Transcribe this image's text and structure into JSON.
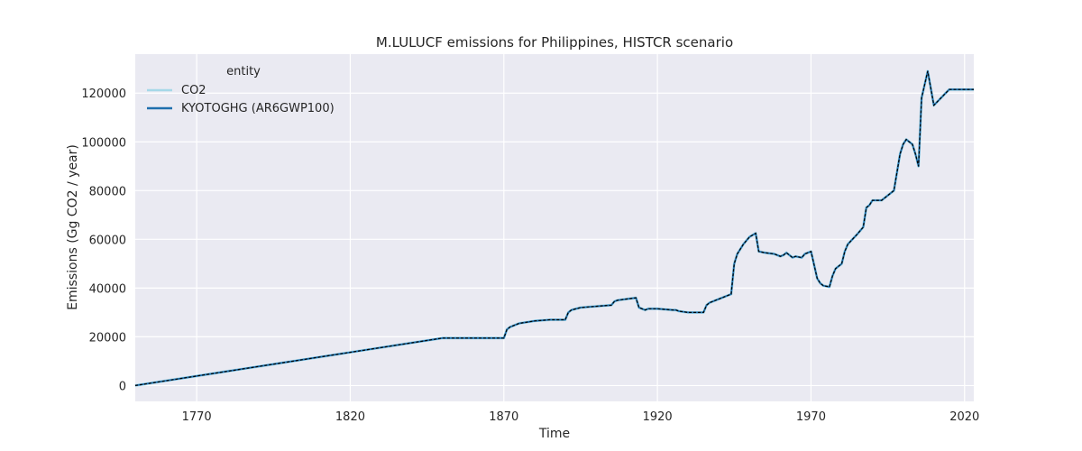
{
  "chart_data": {
    "type": "line",
    "title": "M.LULUCF emissions for Philippines, HISTCR scenario",
    "xlabel": "Time",
    "ylabel": "Emissions (Gg CO2 / year)",
    "xlim": [
      1750,
      2023
    ],
    "ylim": [
      -6500,
      136000
    ],
    "xticks": [
      1770,
      1820,
      1870,
      1920,
      1970,
      2020
    ],
    "yticks": [
      0,
      20000,
      40000,
      60000,
      80000,
      100000,
      120000
    ],
    "grid": true,
    "legend": {
      "title": "entity",
      "position": "top-left"
    },
    "x": [
      1750,
      1850,
      1870,
      1871,
      1872,
      1875,
      1880,
      1885,
      1890,
      1891,
      1892,
      1895,
      1900,
      1905,
      1906,
      1907,
      1910,
      1913,
      1914,
      1916,
      1917,
      1920,
      1925,
      1926,
      1927,
      1930,
      1935,
      1936,
      1937,
      1940,
      1944,
      1945,
      1946,
      1948,
      1950,
      1952,
      1953,
      1955,
      1958,
      1960,
      1961,
      1962,
      1964,
      1965,
      1967,
      1968,
      1970,
      1972,
      1973,
      1974,
      1976,
      1977,
      1978,
      1980,
      1981,
      1982,
      1985,
      1987,
      1988,
      1989,
      1990,
      1993,
      1995,
      1997,
      1999,
      2000,
      2001,
      2002,
      2003,
      2004,
      2005,
      2006,
      2008,
      2010,
      2015,
      2020,
      2023
    ],
    "series": [
      {
        "name": "CO2",
        "color": "#a6d8e8",
        "values": [
          0,
          19500,
          19500,
          23000,
          24000,
          25500,
          26500,
          27000,
          27000,
          30000,
          31000,
          32000,
          32500,
          33000,
          34500,
          35000,
          35500,
          36000,
          32000,
          31000,
          31500,
          31500,
          31000,
          31000,
          30500,
          30000,
          30000,
          33000,
          34000,
          35500,
          37500,
          50000,
          54000,
          58000,
          61000,
          62500,
          55000,
          54500,
          54000,
          53000,
          53500,
          54500,
          52500,
          53000,
          52500,
          54000,
          55000,
          44000,
          42000,
          41000,
          40500,
          45000,
          48000,
          50000,
          55000,
          58000,
          62000,
          65000,
          73000,
          74000,
          76000,
          76000,
          78000,
          80000,
          95000,
          99000,
          101000,
          100000,
          99000,
          95000,
          90000,
          118000,
          129000,
          115000,
          121500,
          121500,
          121500
        ]
      },
      {
        "name": "KYOTOGHG (AR6GWP100)",
        "color": "#1f6fad",
        "values": [
          0,
          19500,
          19500,
          23000,
          24000,
          25500,
          26500,
          27000,
          27000,
          30000,
          31000,
          32000,
          32500,
          33000,
          34500,
          35000,
          35500,
          36000,
          32000,
          31000,
          31500,
          31500,
          31000,
          31000,
          30500,
          30000,
          30000,
          33000,
          34000,
          35500,
          37500,
          50000,
          54000,
          58000,
          61000,
          62500,
          55000,
          54500,
          54000,
          53000,
          53500,
          54500,
          52500,
          53000,
          52500,
          54000,
          55000,
          44000,
          42000,
          41000,
          40500,
          45000,
          48000,
          50000,
          55000,
          58000,
          62000,
          65000,
          73000,
          74000,
          76000,
          76000,
          78000,
          80000,
          95000,
          99000,
          101000,
          100000,
          99000,
          95000,
          90000,
          118000,
          129000,
          115000,
          121500,
          121500,
          121500
        ]
      }
    ]
  }
}
